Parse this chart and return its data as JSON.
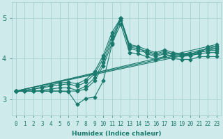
{
  "xlabel": "Humidex (Indice chaleur)",
  "background_color": "#ceeaea",
  "grid_color": "#9ecece",
  "line_color": "#1a7a6e",
  "xlim": [
    -0.5,
    23.5
  ],
  "ylim": [
    2.6,
    5.4
  ],
  "xticks": [
    0,
    1,
    2,
    3,
    4,
    5,
    6,
    7,
    8,
    9,
    10,
    11,
    12,
    13,
    14,
    15,
    16,
    17,
    18,
    19,
    20,
    21,
    22,
    23
  ],
  "yticks": [
    3,
    4,
    5
  ],
  "series": [
    [
      3.2,
      3.2,
      3.2,
      3.2,
      3.2,
      3.2,
      3.18,
      2.87,
      3.02,
      3.05,
      3.45,
      4.35,
      5.0,
      4.32,
      4.28,
      4.12,
      4.05,
      4.12,
      4.05,
      4.05,
      4.08,
      4.12,
      4.3,
      4.3
    ],
    [
      3.2,
      3.2,
      3.2,
      3.22,
      3.25,
      3.28,
      3.28,
      3.22,
      3.32,
      3.52,
      3.9,
      4.48,
      4.95,
      4.25,
      4.2,
      4.15,
      4.08,
      4.15,
      4.1,
      4.08,
      4.08,
      4.12,
      4.15,
      4.15
    ],
    [
      3.2,
      3.2,
      3.2,
      3.2,
      3.2,
      3.2,
      3.2,
      3.2,
      3.25,
      3.45,
      3.82,
      4.38,
      4.85,
      4.15,
      4.12,
      4.05,
      3.98,
      4.05,
      4.0,
      3.98,
      3.98,
      4.05,
      4.05,
      4.05
    ],
    [
      3.2,
      3.22,
      3.25,
      3.28,
      3.32,
      3.35,
      3.38,
      3.32,
      3.42,
      3.62,
      4.0,
      4.55,
      5.0,
      4.28,
      4.25,
      4.18,
      4.12,
      4.18,
      4.12,
      4.1,
      4.1,
      4.15,
      4.2,
      4.2
    ],
    [
      3.2,
      3.22,
      3.25,
      3.3,
      3.35,
      3.4,
      3.42,
      3.38,
      3.48,
      3.68,
      4.08,
      4.65,
      5.0,
      4.35,
      4.3,
      4.22,
      4.15,
      4.22,
      4.15,
      4.12,
      4.12,
      4.18,
      4.25,
      4.25
    ]
  ],
  "linear_series": [
    {
      "x0": 0,
      "y0": 3.2,
      "x1": 23,
      "y1": 4.35
    },
    {
      "x0": 0,
      "y0": 3.2,
      "x1": 23,
      "y1": 4.3
    },
    {
      "x0": 0,
      "y0": 3.2,
      "x1": 23,
      "y1": 4.25
    }
  ],
  "markersize": 2.5,
  "linewidth": 0.8
}
